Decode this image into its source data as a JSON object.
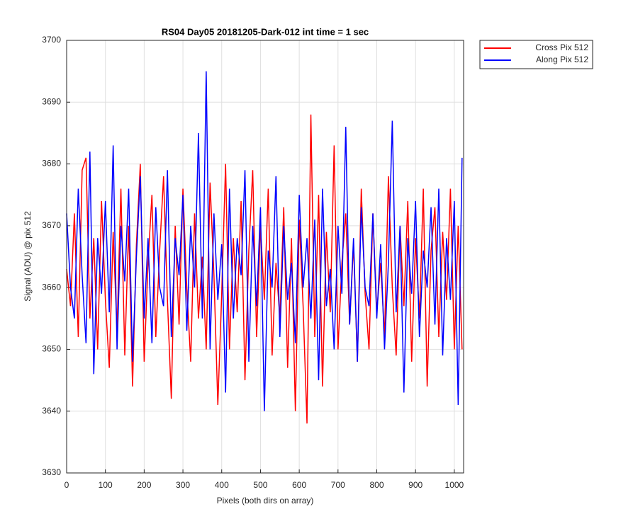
{
  "chart_data": {
    "type": "line",
    "title": "RS04 Day05 20181205-Dark-012 int time = 1 sec",
    "x_label": "Pixels (both dirs on array)",
    "y_label": "Signal (ADU) @ pix 512",
    "x": [
      0,
      10,
      20,
      30,
      40,
      50,
      60,
      70,
      80,
      90,
      100,
      110,
      120,
      130,
      140,
      150,
      160,
      170,
      180,
      190,
      200,
      210,
      220,
      230,
      240,
      250,
      260,
      270,
      280,
      290,
      300,
      310,
      320,
      330,
      340,
      350,
      360,
      370,
      380,
      390,
      400,
      410,
      420,
      430,
      440,
      450,
      460,
      470,
      480,
      490,
      500,
      510,
      520,
      530,
      540,
      550,
      560,
      570,
      580,
      590,
      600,
      610,
      620,
      630,
      640,
      650,
      660,
      670,
      680,
      690,
      700,
      710,
      720,
      730,
      740,
      750,
      760,
      770,
      780,
      790,
      800,
      810,
      820,
      830,
      840,
      850,
      860,
      870,
      880,
      890,
      900,
      910,
      920,
      930,
      940,
      950,
      960,
      970,
      980,
      990,
      1000,
      1010,
      1020
    ],
    "series": [
      {
        "name": "Cross Pix 512",
        "color": "#ff0000",
        "values": [
          3663,
          3657,
          3672,
          3652,
          3679,
          3681,
          3655,
          3668,
          3650,
          3674,
          3658,
          3647,
          3669,
          3653,
          3676,
          3649,
          3670,
          3644,
          3667,
          3680,
          3648,
          3664,
          3675,
          3652,
          3666,
          3678,
          3658,
          3642,
          3670,
          3654,
          3676,
          3660,
          3648,
          3672,
          3655,
          3665,
          3650,
          3677,
          3662,
          3641,
          3659,
          3680,
          3650,
          3668,
          3656,
          3674,
          3645,
          3666,
          3679,
          3652,
          3670,
          3658,
          3676,
          3649,
          3664,
          3655,
          3673,
          3647,
          3668,
          3640,
          3671,
          3657,
          3638,
          3688,
          3652,
          3675,
          3644,
          3669,
          3656,
          3683,
          3650,
          3664,
          3672,
          3654,
          3667,
          3648,
          3676,
          3659,
          3650,
          3672,
          3656,
          3664,
          3652,
          3678,
          3660,
          3649,
          3670,
          3657,
          3674,
          3648,
          3668,
          3655,
          3676,
          3644,
          3666,
          3673,
          3652,
          3669,
          3658,
          3676,
          3650,
          3670,
          3650
        ]
      },
      {
        "name": "Along Pix 512",
        "color": "#0000ff",
        "values": [
          3672,
          3660,
          3655,
          3676,
          3662,
          3651,
          3682,
          3646,
          3668,
          3659,
          3674,
          3656,
          3683,
          3650,
          3670,
          3661,
          3676,
          3648,
          3665,
          3678,
          3655,
          3668,
          3651,
          3673,
          3660,
          3657,
          3679,
          3652,
          3668,
          3662,
          3675,
          3653,
          3670,
          3660,
          3685,
          3655,
          3695,
          3650,
          3672,
          3658,
          3667,
          3643,
          3676,
          3655,
          3668,
          3662,
          3679,
          3648,
          3670,
          3657,
          3673,
          3640,
          3666,
          3660,
          3678,
          3652,
          3670,
          3658,
          3664,
          3651,
          3675,
          3660,
          3668,
          3655,
          3671,
          3645,
          3676,
          3657,
          3663,
          3650,
          3670,
          3659,
          3686,
          3654,
          3668,
          3648,
          3673,
          3660,
          3657,
          3672,
          3655,
          3667,
          3650,
          3664,
          3687,
          3656,
          3670,
          3643,
          3668,
          3659,
          3674,
          3652,
          3666,
          3660,
          3673,
          3654,
          3676,
          3649,
          3668,
          3658,
          3674,
          3641,
          3681
        ]
      }
    ],
    "xlim": [
      0,
      1024
    ],
    "xticks": [
      0,
      100,
      200,
      300,
      400,
      500,
      600,
      700,
      800,
      900,
      1000
    ],
    "ylim": [
      3630,
      3700
    ],
    "yticks": [
      3630,
      3640,
      3650,
      3660,
      3670,
      3680,
      3690,
      3700
    ],
    "grid": true,
    "legend_position": "outside-top-right"
  }
}
